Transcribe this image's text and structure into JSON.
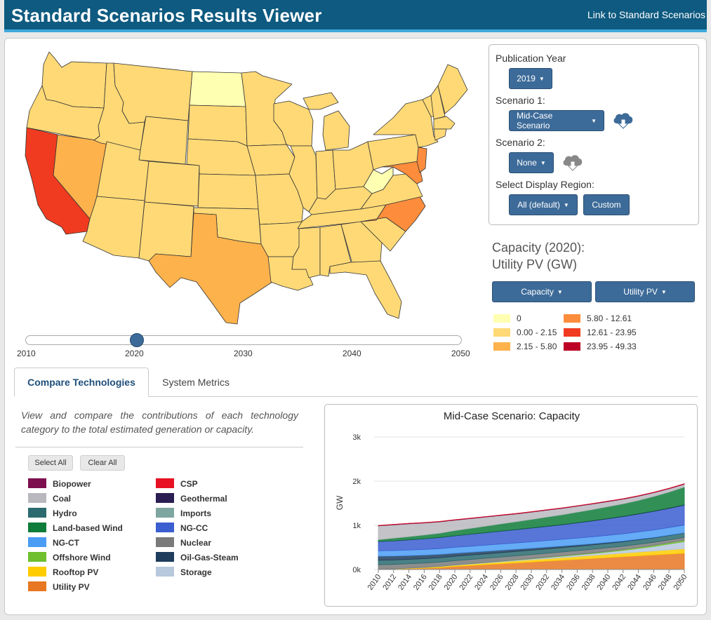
{
  "header": {
    "title": "Standard Scenarios Results Viewer",
    "link": "Link to Standard Scenarios"
  },
  "controls": {
    "publication_year_label": "Publication Year",
    "publication_year": "2019",
    "scenario1_label": "Scenario 1:",
    "scenario1": "Mid-Case Scenario",
    "scenario2_label": "Scenario 2:",
    "scenario2": "None",
    "region_label": "Select Display Region:",
    "region": "All (default)",
    "custom_label": "Custom"
  },
  "map": {
    "title_line1": "Capacity (2020):",
    "title_line2": "Utility PV (GW)",
    "metric": "Capacity",
    "technology": "Utility PV",
    "legend": [
      {
        "label": "0",
        "color": "#ffffb2"
      },
      {
        "label": "0.00 - 2.15",
        "color": "#fed976"
      },
      {
        "label": "2.15 - 5.80",
        "color": "#feb24c"
      },
      {
        "label": "5.80 - 12.61",
        "color": "#fd8d3c"
      },
      {
        "label": "12.61 - 23.95",
        "color": "#f03b20"
      },
      {
        "label": "23.95 - 49.33",
        "color": "#bd0026"
      }
    ],
    "slider": {
      "ticks": [
        "2010",
        "2020",
        "2030",
        "2040",
        "2050"
      ],
      "value": 2020
    }
  },
  "tabs": {
    "compare": "Compare Technologies",
    "system": "System Metrics"
  },
  "description": "View and compare the contributions of each technology category to the total estimated generation or capacity.",
  "buttons": {
    "select_all": "Select All",
    "clear_all": "Clear All"
  },
  "technologies": [
    {
      "name": "Biopower",
      "color": "#7d0f4e"
    },
    {
      "name": "Coal",
      "color": "#b8b8be"
    },
    {
      "name": "Hydro",
      "color": "#2b6a6e"
    },
    {
      "name": "Land-based Wind",
      "color": "#0e7c3a"
    },
    {
      "name": "NG-CT",
      "color": "#4a9cf5"
    },
    {
      "name": "Offshore Wind",
      "color": "#6fbf2e"
    },
    {
      "name": "Rooftop PV",
      "color": "#ffcc00"
    },
    {
      "name": "Utility PV",
      "color": "#e87722"
    },
    {
      "name": "CSP",
      "color": "#e81123"
    },
    {
      "name": "Geothermal",
      "color": "#2a1e52"
    },
    {
      "name": "Imports",
      "color": "#7ea6a0"
    },
    {
      "name": "NG-CC",
      "color": "#3b5ed0"
    },
    {
      "name": "Nuclear",
      "color": "#7a7a7a"
    },
    {
      "name": "Oil-Gas-Steam",
      "color": "#1f3d5c"
    },
    {
      "name": "Storage",
      "color": "#b8c8dd"
    }
  ],
  "chart_data": {
    "type": "area",
    "title": "Mid-Case Scenario: Capacity",
    "ylabel": "GW",
    "xlabel": "",
    "x": [
      2010,
      2012,
      2014,
      2016,
      2018,
      2020,
      2022,
      2024,
      2026,
      2028,
      2030,
      2032,
      2034,
      2036,
      2038,
      2040,
      2042,
      2044,
      2046,
      2048,
      2050
    ],
    "y_ticks": [
      "0k",
      "1k",
      "2k",
      "3k"
    ],
    "ylim": [
      0,
      3000
    ],
    "series": [
      {
        "name": "Utility PV",
        "color": "#e87722",
        "values": [
          5,
          10,
          20,
          30,
          45,
          70,
          90,
          110,
          130,
          150,
          170,
          190,
          210,
          230,
          250,
          270,
          290,
          310,
          330,
          350,
          370
        ]
      },
      {
        "name": "Rooftop PV",
        "color": "#ffcc00",
        "values": [
          2,
          5,
          10,
          15,
          20,
          25,
          30,
          35,
          40,
          45,
          50,
          55,
          60,
          65,
          70,
          75,
          80,
          85,
          90,
          95,
          100
        ]
      },
      {
        "name": "Storage",
        "color": "#b8c8dd",
        "values": [
          1,
          1,
          2,
          3,
          5,
          8,
          10,
          12,
          15,
          18,
          20,
          25,
          30,
          35,
          40,
          50,
          60,
          80,
          100,
          130,
          160
        ]
      },
      {
        "name": "Offshore Wind",
        "color": "#6fbf2e",
        "values": [
          0,
          0,
          0,
          0,
          0,
          0,
          1,
          2,
          3,
          5,
          7,
          9,
          11,
          13,
          16,
          19,
          22,
          25,
          28,
          31,
          35
        ]
      },
      {
        "name": "Nuclear",
        "color": "#7a7a7a",
        "values": [
          100,
          100,
          99,
          99,
          98,
          97,
          96,
          95,
          94,
          92,
          90,
          88,
          86,
          84,
          82,
          80,
          76,
          72,
          68,
          64,
          60
        ]
      },
      {
        "name": "Hydro",
        "color": "#2b6a6e",
        "values": [
          100,
          100,
          100,
          100,
          100,
          100,
          100,
          100,
          100,
          100,
          100,
          100,
          100,
          100,
          100,
          100,
          100,
          100,
          100,
          100,
          100
        ]
      },
      {
        "name": "Oil-Gas-Steam",
        "color": "#1f3d5c",
        "values": [
          95,
          90,
          85,
          80,
          75,
          70,
          65,
          60,
          55,
          50,
          45,
          40,
          35,
          30,
          26,
          22,
          18,
          14,
          11,
          8,
          6
        ]
      },
      {
        "name": "NG-CT",
        "color": "#4a9cf5",
        "values": [
          120,
          122,
          125,
          127,
          130,
          132,
          135,
          137,
          140,
          142,
          145,
          148,
          150,
          153,
          156,
          159,
          162,
          165,
          168,
          171,
          175
        ]
      },
      {
        "name": "NG-CC",
        "color": "#3b5ed0",
        "values": [
          210,
          220,
          230,
          240,
          250,
          260,
          270,
          280,
          290,
          300,
          310,
          320,
          330,
          345,
          360,
          375,
          390,
          405,
          420,
          435,
          450
        ]
      },
      {
        "name": "Geothermal",
        "color": "#2a1e52",
        "values": [
          3,
          3,
          3,
          3,
          4,
          4,
          4,
          5,
          5,
          5,
          6,
          6,
          6,
          7,
          7,
          7,
          8,
          8,
          8,
          9,
          9
        ]
      },
      {
        "name": "Land-based Wind",
        "color": "#0e7c3a",
        "values": [
          40,
          60,
          70,
          85,
          95,
          115,
          130,
          145,
          160,
          175,
          190,
          205,
          220,
          235,
          250,
          265,
          280,
          300,
          330,
          360,
          400
        ]
      },
      {
        "name": "Coal",
        "color": "#b8b8be",
        "values": [
          310,
          300,
          290,
          270,
          255,
          235,
          220,
          205,
          190,
          175,
          165,
          155,
          145,
          135,
          125,
          115,
          105,
          95,
          85,
          75,
          65
        ]
      },
      {
        "name": "Biopower",
        "color": "#7d0f4e",
        "values": [
          10,
          10,
          10,
          10,
          10,
          10,
          10,
          10,
          10,
          10,
          10,
          10,
          10,
          10,
          10,
          10,
          10,
          10,
          10,
          10,
          10
        ]
      },
      {
        "name": "CSP",
        "color": "#e81123",
        "values": [
          1,
          1,
          1,
          1,
          1,
          1,
          1,
          1,
          1,
          1,
          1,
          1,
          1,
          1,
          1,
          1,
          1,
          1,
          1,
          1,
          1
        ]
      }
    ]
  }
}
